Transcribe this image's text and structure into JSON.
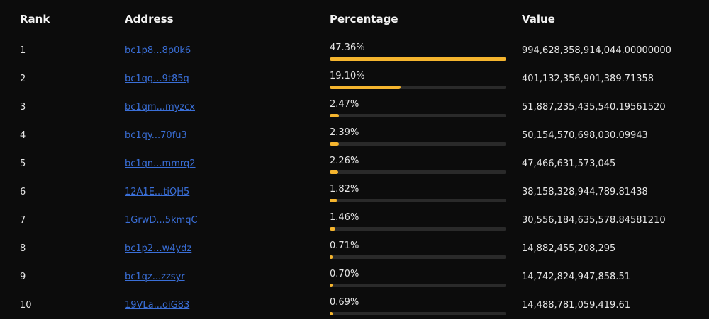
{
  "table": {
    "header": [
      "Rank",
      "Address",
      "Percentage",
      "Value"
    ],
    "rows": [
      {
        "rank": "1",
        "address": "bc1p8...8p0k6",
        "percentage": {
          "value": 47.36,
          "label": "47.36%"
        },
        "value": "994,628,358,914,044.00000000"
      },
      {
        "rank": "2",
        "address": "bc1qg...9t85q",
        "percentage": {
          "value": 19.1,
          "label": "19.10%"
        },
        "value": "401,132,356,901,389.71358"
      },
      {
        "rank": "3",
        "address": "bc1qm...myzcx",
        "percentage": {
          "value": 2.47,
          "label": "2.47%"
        },
        "value": "51,887,235,435,540.19561520"
      },
      {
        "rank": "4",
        "address": "bc1qy...70fu3",
        "percentage": {
          "value": 2.39,
          "label": "2.39%"
        },
        "value": "50,154,570,698,030.09943"
      },
      {
        "rank": "5",
        "address": "bc1qn...mmrq2",
        "percentage": {
          "value": 2.26,
          "label": "2.26%"
        },
        "value": "47,466,631,573,045"
      },
      {
        "rank": "6",
        "address": "12A1E...tiQH5",
        "percentage": {
          "value": 1.82,
          "label": "1.82%"
        },
        "value": "38,158,328,944,789.81438"
      },
      {
        "rank": "7",
        "address": "1GrwD...5kmqC",
        "percentage": {
          "value": 1.46,
          "label": "1.46%"
        },
        "value": "30,556,184,635,578.84581210"
      },
      {
        "rank": "8",
        "address": "bc1p2...w4ydz",
        "percentage": {
          "value": 0.71,
          "label": "0.71%"
        },
        "value": "14,882,455,208,295"
      },
      {
        "rank": "9",
        "address": "bc1qz...zzsyr",
        "percentage": {
          "value": 0.7,
          "label": "0.70%"
        },
        "value": "14,742,824,947,858.51"
      },
      {
        "rank": "10",
        "address": "19VLa...oiG83",
        "percentage": {
          "value": 0.69,
          "label": "0.69%"
        },
        "value": "14,488,781,059,419.61"
      }
    ]
  }
}
